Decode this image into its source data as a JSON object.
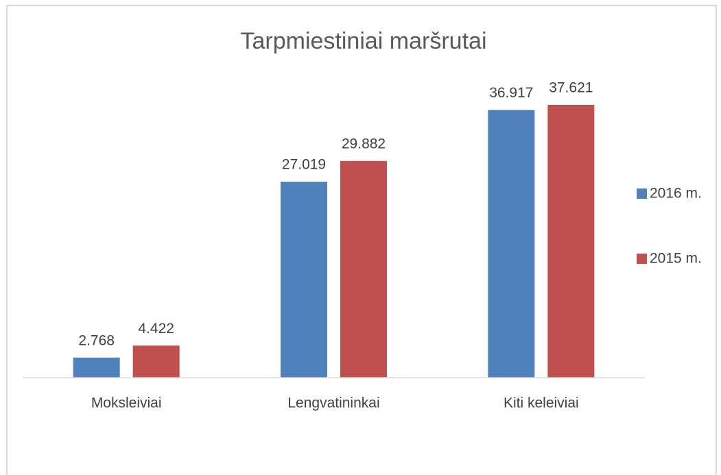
{
  "chart_data": {
    "type": "bar",
    "title": "Tarpmiestiniai maršrutai",
    "categories": [
      "Moksleiviai",
      "Lengvatininkai",
      "Kiti keleiviai"
    ],
    "series": [
      {
        "name": "2016 m.",
        "color": "#4f81bd",
        "values": [
          2.768,
          27.019,
          36.917
        ]
      },
      {
        "name": "2015 m.",
        "color": "#c0504d",
        "values": [
          4.422,
          29.882,
          37.621
        ]
      }
    ],
    "legend": "right",
    "grid": false
  }
}
